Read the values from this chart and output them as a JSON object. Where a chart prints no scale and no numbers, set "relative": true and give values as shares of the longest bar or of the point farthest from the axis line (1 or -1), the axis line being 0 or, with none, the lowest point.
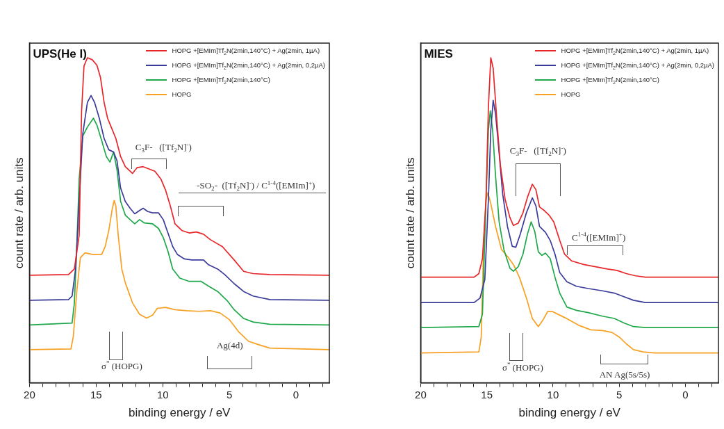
{
  "chart_data": [
    {
      "type": "line",
      "title": "UPS(He I)",
      "xlabel": "binding energy / eV",
      "ylabel": "count rate / arb. units",
      "relative": true,
      "grid": false,
      "legend": "top right",
      "tick_labels": "x",
      "marker": "none",
      "line_style": "solid",
      "xlim": [
        20,
        -2.5
      ],
      "xticks": [
        20,
        {
          "value": 19,
          "label": null
        },
        {
          "value": 18,
          "label": null
        },
        {
          "value": 17,
          "label": null
        },
        {
          "value": 16,
          "label": null
        },
        15,
        {
          "value": 14,
          "label": null
        },
        {
          "value": 13,
          "label": null
        },
        {
          "value": 12,
          "label": null
        },
        {
          "value": 11,
          "label": null
        },
        10,
        {
          "value": 9,
          "label": null
        },
        {
          "value": 8,
          "label": null
        },
        {
          "value": 7,
          "label": null
        },
        {
          "value": 6,
          "label": null
        },
        5,
        {
          "value": 4,
          "label": null
        },
        {
          "value": 3,
          "label": null
        },
        {
          "value": 2,
          "label": null
        },
        {
          "value": 1,
          "label": null
        },
        0,
        {
          "value": -1,
          "label": null
        },
        {
          "value": -2,
          "label": null
        }
      ],
      "series": [
        {
          "name": "HOPG +[EMIm]Tf$_{2}$N(2min,140°C) + Ag(2min, 1µA)",
          "color": "#e8262a",
          "x": [
            20,
            17.07,
            16.63,
            16.27,
            16.09,
            15.91,
            15.65,
            15.29,
            14.94,
            14.67,
            14.4,
            14.14,
            13.87,
            13.52,
            13.16,
            12.81,
            12.27,
            11.92,
            11.47,
            11.03,
            10.59,
            10.14,
            9.79,
            9.43,
            9.08,
            8.54,
            8.01,
            7.48,
            6.94,
            6.41,
            5.52,
            4.64,
            3.93,
            3.22,
            1.97,
            -2.5
          ],
          "values": [
            0.331,
            0.333,
            0.35,
            0.454,
            0.835,
            0.974,
            1.0,
            0.994,
            0.977,
            0.939,
            0.863,
            0.814,
            0.787,
            0.752,
            0.696,
            0.665,
            0.644,
            0.662,
            0.665,
            0.658,
            0.651,
            0.627,
            0.593,
            0.544,
            0.489,
            0.468,
            0.461,
            0.464,
            0.457,
            0.44,
            0.419,
            0.378,
            0.343,
            0.336,
            0.333,
            0.331
          ]
        },
        {
          "name": "HOPG +[EMIm]Tf$_{2}$N(2min,140°C) + Ag(2min, 0,2µA)",
          "color": "#3b3b9b",
          "x": [
            20,
            17.07,
            16.8,
            16.54,
            16.27,
            16.0,
            15.65,
            15.38,
            15.12,
            14.76,
            14.4,
            14.05,
            13.69,
            13.43,
            13.16,
            12.81,
            12.45,
            12.1,
            11.74,
            11.47,
            11.12,
            10.76,
            10.32,
            9.96,
            9.61,
            9.25,
            8.9,
            8.37,
            7.83,
            7.3,
            6.94,
            6.59,
            5.88,
            5.35,
            4.64,
            3.93,
            3.22,
            1.97,
            -2.5
          ],
          "values": [
            0.254,
            0.256,
            0.267,
            0.35,
            0.558,
            0.766,
            0.863,
            0.884,
            0.863,
            0.814,
            0.752,
            0.717,
            0.71,
            0.683,
            0.599,
            0.558,
            0.537,
            0.52,
            0.53,
            0.537,
            0.527,
            0.523,
            0.523,
            0.502,
            0.461,
            0.419,
            0.395,
            0.381,
            0.378,
            0.378,
            0.378,
            0.364,
            0.35,
            0.333,
            0.305,
            0.281,
            0.267,
            0.256,
            0.254
          ]
        },
        {
          "name": "HOPG +[EMIm]Tf$_{2}$N(2min,140°C)",
          "color": "#1fa84a",
          "x": [
            20,
            16.8,
            16.63,
            16.45,
            16.27,
            16.0,
            15.65,
            15.2,
            14.94,
            14.58,
            14.23,
            13.96,
            13.69,
            13.43,
            13.16,
            12.81,
            12.45,
            12.1,
            11.74,
            11.39,
            10.76,
            10.32,
            9.96,
            9.61,
            9.25,
            8.72,
            8.01,
            7.12,
            6.59,
            5.88,
            5.17,
            4.64,
            3.93,
            3.22,
            1.97,
            -2.5
          ],
          "values": [
            0.178,
            0.184,
            0.246,
            0.419,
            0.627,
            0.759,
            0.787,
            0.814,
            0.793,
            0.745,
            0.696,
            0.679,
            0.71,
            0.655,
            0.558,
            0.516,
            0.502,
            0.489,
            0.502,
            0.492,
            0.489,
            0.475,
            0.447,
            0.405,
            0.35,
            0.322,
            0.312,
            0.312,
            0.298,
            0.281,
            0.253,
            0.225,
            0.198,
            0.187,
            0.18,
            0.178
          ]
        },
        {
          "name": "HOPG",
          "color": "#f7a021",
          "x": [
            20,
            16.89,
            16.71,
            16.45,
            16.18,
            15.83,
            15.29,
            14.58,
            14.32,
            14.05,
            13.78,
            13.64,
            13.52,
            13.34,
            13.07,
            12.81,
            12.27,
            11.74,
            11.21,
            10.76,
            10.41,
            9.79,
            9.08,
            8.19,
            7.3,
            6.41,
            5.7,
            4.99,
            4.28,
            3.57,
            2.86,
            1.97,
            -2.5
          ],
          "values": [
            0.102,
            0.104,
            0.142,
            0.281,
            0.385,
            0.4,
            0.395,
            0.395,
            0.419,
            0.468,
            0.537,
            0.561,
            0.544,
            0.454,
            0.35,
            0.308,
            0.246,
            0.211,
            0.199,
            0.208,
            0.229,
            0.232,
            0.225,
            0.222,
            0.22,
            0.222,
            0.215,
            0.194,
            0.156,
            0.128,
            0.118,
            0.107,
            0.102
          ]
        }
      ],
      "annotations": [
        "C$_{3}$F-   ([Tf$_{2}$N]$^{-}$)",
        "-SO$_{2}$-  ([Tf$_{2}$N]$^{-}$) / C$^{1-4}$([EMIm]$^{+}$)",
        "σ$^{*}$ (HOPG)",
        "Ag(4d)"
      ]
    },
    {
      "type": "line",
      "title": "MIES",
      "xlabel": "binding energy / eV",
      "ylabel": "count rate / arb. units",
      "relative": true,
      "grid": false,
      "legend": "top right",
      "tick_labels": "x",
      "marker": "none",
      "line_style": "solid",
      "xlim": [
        20,
        -2.5
      ],
      "xticks": [
        20,
        {
          "value": 19,
          "label": null
        },
        {
          "value": 18,
          "label": null
        },
        {
          "value": 17,
          "label": null
        },
        {
          "value": 16,
          "label": null
        },
        15,
        {
          "value": 14,
          "label": null
        },
        {
          "value": 13,
          "label": null
        },
        {
          "value": 12,
          "label": null
        },
        {
          "value": 11,
          "label": null
        },
        10,
        {
          "value": 9,
          "label": null
        },
        {
          "value": 8,
          "label": null
        },
        {
          "value": 7,
          "label": null
        },
        {
          "value": 6,
          "label": null
        },
        5,
        {
          "value": 4,
          "label": null
        },
        {
          "value": 3,
          "label": null
        },
        {
          "value": 2,
          "label": null
        },
        {
          "value": 1,
          "label": null
        },
        0,
        {
          "value": -1,
          "label": null
        },
        {
          "value": -2,
          "label": null
        }
      ],
      "series": [
        {
          "name": "HOPG +[EMIm]Tf$_{2}$N(2min,140°C) + Ag(2min, 1µA)",
          "color": "#e8262a",
          "x": [
            20,
            15.96,
            15.6,
            15.33,
            15.06,
            14.88,
            14.7,
            14.52,
            14.25,
            13.98,
            13.62,
            13.26,
            12.99,
            12.63,
            12.27,
            11.92,
            11.56,
            11.29,
            11.02,
            10.66,
            10.3,
            9.94,
            9.49,
            9.13,
            8.59,
            7.69,
            6.79,
            5.9,
            5.18,
            4.46,
            3.74,
            3.02,
            -2.5
          ],
          "values": [
            0.325,
            0.325,
            0.336,
            0.382,
            0.565,
            0.848,
            1.0,
            0.968,
            0.813,
            0.671,
            0.565,
            0.509,
            0.484,
            0.491,
            0.523,
            0.572,
            0.611,
            0.594,
            0.541,
            0.53,
            0.516,
            0.495,
            0.438,
            0.396,
            0.375,
            0.364,
            0.357,
            0.35,
            0.346,
            0.336,
            0.329,
            0.325,
            0.325
          ]
        },
        {
          "name": "HOPG +[EMIm]Tf$_{2}$N(2min,140°C) + Ag(2min, 0,2µA)",
          "color": "#3b3b9b",
          "x": [
            20,
            15.96,
            15.51,
            15.15,
            14.88,
            14.7,
            14.52,
            14.34,
            14.07,
            13.8,
            13.44,
            13.08,
            12.81,
            12.46,
            12.01,
            11.56,
            11.29,
            11.02,
            10.57,
            10.21,
            9.85,
            9.49,
            8.95,
            8.23,
            7.33,
            6.26,
            5.36,
            4.64,
            3.92,
            3.02,
            -2.5
          ],
          "values": [
            0.247,
            0.247,
            0.261,
            0.318,
            0.565,
            0.777,
            0.869,
            0.827,
            0.707,
            0.58,
            0.481,
            0.42,
            0.417,
            0.459,
            0.523,
            0.569,
            0.544,
            0.481,
            0.463,
            0.438,
            0.396,
            0.339,
            0.311,
            0.297,
            0.29,
            0.283,
            0.276,
            0.265,
            0.254,
            0.247,
            0.247
          ]
        },
        {
          "name": "HOPG +[EMIm]Tf$_{2}$N(2min,140°C)",
          "color": "#1fa84a",
          "x": [
            20,
            15.6,
            15.33,
            15.06,
            14.88,
            14.74,
            14.56,
            14.34,
            14.07,
            13.71,
            13.26,
            12.99,
            12.63,
            12.27,
            11.92,
            11.65,
            11.38,
            11.11,
            10.84,
            10.57,
            10.21,
            9.85,
            9.49,
            8.95,
            8.23,
            7.33,
            6.26,
            5.36,
            4.64,
            3.92,
            3.02,
            -2.5
          ],
          "values": [
            0.17,
            0.173,
            0.212,
            0.565,
            0.777,
            0.837,
            0.777,
            0.636,
            0.495,
            0.41,
            0.353,
            0.343,
            0.357,
            0.396,
            0.459,
            0.495,
            0.466,
            0.403,
            0.392,
            0.399,
            0.382,
            0.325,
            0.276,
            0.233,
            0.223,
            0.216,
            0.205,
            0.198,
            0.184,
            0.173,
            0.17,
            0.17
          ]
        },
        {
          "name": "HOPG",
          "color": "#f7a021",
          "x": [
            20,
            15.6,
            15.42,
            15.24,
            15.06,
            14.92,
            14.7,
            14.34,
            13.89,
            13.44,
            12.99,
            12.54,
            12.01,
            11.56,
            11.11,
            10.75,
            10.39,
            10.03,
            9.13,
            8.05,
            7.15,
            6.26,
            5.54,
            5.0,
            4.46,
            3.92,
            3.2,
            2.3,
            -2.5
          ],
          "values": [
            0.092,
            0.095,
            0.141,
            0.424,
            0.565,
            0.585,
            0.551,
            0.481,
            0.41,
            0.389,
            0.364,
            0.325,
            0.261,
            0.198,
            0.173,
            0.194,
            0.22,
            0.219,
            0.201,
            0.177,
            0.163,
            0.161,
            0.155,
            0.141,
            0.12,
            0.102,
            0.095,
            0.092,
            0.092
          ]
        }
      ],
      "annotations": [
        "C$_{3}$F-   ([Tf$_{2}$N]$^{-}$)",
        "C$^{1-4}$([EMIm]$^{+}$)",
        "σ$^{*}$ (HOPG)",
        "AN Ag(5s/5s)"
      ]
    }
  ]
}
